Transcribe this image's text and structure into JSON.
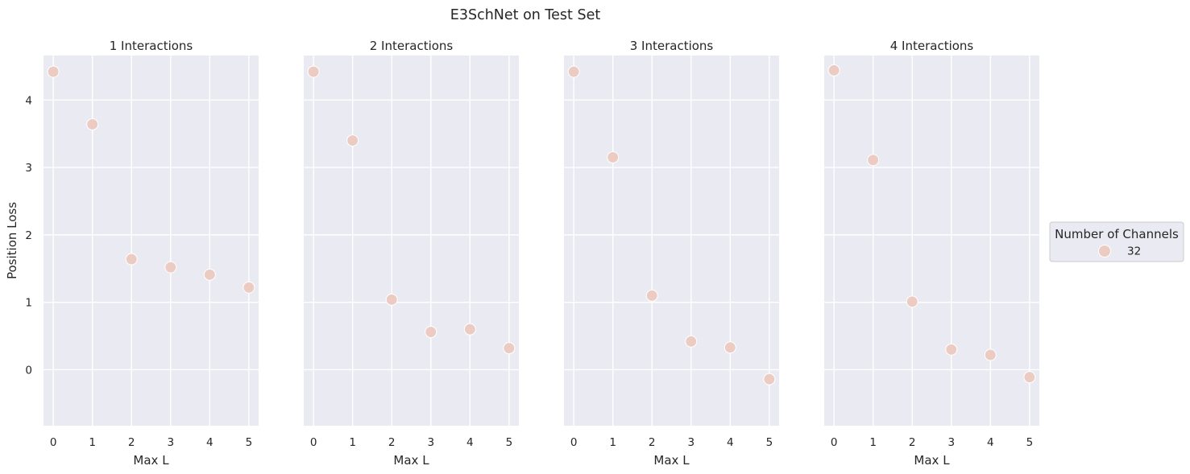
{
  "chart_data": {
    "type": "scatter",
    "title": "E3SchNet on Test Set",
    "ylabel": "Position Loss",
    "xlabel": "Max L",
    "x_ticks": [
      "0",
      "1",
      "2",
      "3",
      "4",
      "5"
    ],
    "y_ticks": [
      "0",
      "1",
      "2",
      "3",
      "4"
    ],
    "xlim": [
      -0.25,
      5.25
    ],
    "ylim": [
      -0.83,
      4.66
    ],
    "grid": true,
    "legend": {
      "title": "Number of Channels",
      "entries": [
        {
          "label": "32",
          "color": "#ecccc2"
        }
      ],
      "position": "center-right"
    },
    "marker_color": "#ecccc2",
    "panels": [
      {
        "title": "1 Interactions",
        "x": [
          0,
          1,
          2,
          3,
          4,
          5
        ],
        "y": [
          4.42,
          3.64,
          1.64,
          1.52,
          1.41,
          1.22
        ]
      },
      {
        "title": "2 Interactions",
        "x": [
          0,
          1,
          2,
          3,
          4,
          5
        ],
        "y": [
          4.42,
          3.4,
          1.04,
          0.56,
          0.6,
          0.32
        ]
      },
      {
        "title": "3 Interactions",
        "x": [
          0,
          1,
          2,
          3,
          4,
          5
        ],
        "y": [
          4.42,
          3.15,
          1.1,
          0.42,
          0.33,
          -0.14
        ]
      },
      {
        "title": "4 Interactions",
        "x": [
          0,
          1,
          2,
          3,
          4,
          5
        ],
        "y": [
          4.44,
          3.11,
          1.01,
          0.3,
          0.22,
          -0.11
        ]
      }
    ]
  },
  "colors": {
    "panel_bg": "#eaeaf2",
    "grid": "#ffffff",
    "text": "#262626"
  }
}
